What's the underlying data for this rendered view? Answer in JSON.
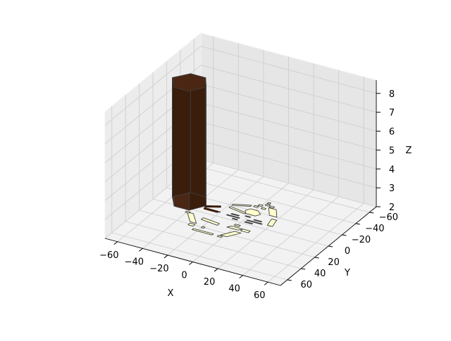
{
  "chart_data": {
    "type": "3d-polygons",
    "title": "",
    "xlabel": "X",
    "ylabel": "Y",
    "zlabel": "Z",
    "xlim": [
      -70,
      70
    ],
    "ylim": [
      -70,
      70
    ],
    "zlim": [
      2,
      8.7
    ],
    "x_ticks": [
      -60,
      -40,
      -20,
      0,
      20,
      40,
      60
    ],
    "y_ticks": [
      -60,
      -40,
      -20,
      0,
      20,
      40,
      60
    ],
    "z_ticks": [
      2,
      3,
      4,
      5,
      6,
      7,
      8
    ],
    "x_tick_labels": [
      "−60",
      "−40",
      "−20",
      "0",
      "20",
      "40",
      "60"
    ],
    "y_tick_labels": [
      "−60",
      "−40",
      "−20",
      "0",
      "20",
      "40",
      "60"
    ],
    "z_tick_labels": [
      "2",
      "3",
      "4",
      "5",
      "6",
      "7",
      "8"
    ],
    "grid": true,
    "colors": {
      "tower_top": "#4a2613",
      "tower_face_light": "#4a2614",
      "tower_face_dark": "#3b1d0c",
      "flat_light": "#ffffcc",
      "flat_dark": "#3a2a25",
      "edge": "#404040"
    },
    "tower": {
      "z_base": 2.0,
      "z_top": 8.3,
      "footprint": [
        [
          -60,
          -10
        ],
        [
          -52,
          -22
        ],
        [
          -40,
          -22
        ],
        [
          -33,
          -10
        ],
        [
          -40,
          2
        ],
        [
          -52,
          2
        ]
      ]
    },
    "flat_polygons": [
      {
        "tone": "light",
        "pts": [
          [
            -24,
            27
          ],
          [
            -8,
            27
          ],
          [
            -8,
            25
          ],
          [
            -24,
            25
          ]
        ]
      },
      {
        "tone": "light",
        "pts": [
          [
            -4,
            27
          ],
          [
            -1,
            27
          ],
          [
            -1,
            25
          ],
          [
            -4,
            25
          ]
        ]
      },
      {
        "tone": "light",
        "pts": [
          [
            -30,
            22
          ],
          [
            -26,
            22
          ],
          [
            -26,
            19
          ],
          [
            -30,
            19
          ]
        ]
      },
      {
        "tone": "light",
        "pts": [
          [
            -20,
            21
          ],
          [
            -18,
            21
          ],
          [
            -18,
            19
          ],
          [
            -20,
            19
          ]
        ]
      },
      {
        "tone": "light",
        "pts": [
          [
            -3,
            24
          ],
          [
            2,
            24
          ],
          [
            8,
            14
          ],
          [
            3,
            14
          ]
        ]
      },
      {
        "tone": "light",
        "pts": [
          [
            -31,
            17
          ],
          [
            -26,
            17
          ],
          [
            -35,
            5
          ],
          [
            -40,
            5
          ]
        ]
      },
      {
        "tone": "light",
        "pts": [
          [
            -26,
            10
          ],
          [
            -12,
            12
          ],
          [
            -12,
            9
          ],
          [
            -26,
            7
          ]
        ]
      },
      {
        "tone": "light",
        "pts": [
          [
            -5,
            11
          ],
          [
            4,
            11
          ],
          [
            6,
            8
          ],
          [
            -3,
            8
          ]
        ]
      },
      {
        "tone": "light",
        "pts": [
          [
            6,
            11
          ],
          [
            12,
            11
          ],
          [
            12,
            8
          ],
          [
            6,
            8
          ]
        ]
      },
      {
        "tone": "light",
        "pts": [
          [
            -2,
            6
          ],
          [
            2,
            6
          ],
          [
            2,
            4
          ],
          [
            -2,
            4
          ]
        ]
      },
      {
        "tone": "light",
        "pts": [
          [
            -41,
            6
          ],
          [
            -38,
            6
          ],
          [
            -38,
            4
          ],
          [
            -41,
            4
          ]
        ]
      },
      {
        "tone": "dark",
        "pts": [
          [
            -8,
            -2
          ],
          [
            -4,
            -2
          ],
          [
            -4,
            -3
          ],
          [
            -8,
            -3
          ]
        ]
      },
      {
        "tone": "dark",
        "pts": [
          [
            2,
            -2
          ],
          [
            8,
            -2
          ],
          [
            8,
            -3
          ],
          [
            2,
            -3
          ]
        ]
      },
      {
        "tone": "dark",
        "pts": [
          [
            -14,
            -5
          ],
          [
            -4,
            -5
          ],
          [
            -4,
            -6
          ],
          [
            -14,
            -6
          ]
        ]
      },
      {
        "tone": "dark",
        "pts": [
          [
            2,
            -5
          ],
          [
            14,
            -5
          ],
          [
            14,
            -6
          ],
          [
            2,
            -6
          ]
        ]
      },
      {
        "tone": "dark",
        "pts": [
          [
            -12,
            -8
          ],
          [
            -6,
            -8
          ],
          [
            -6,
            -9
          ],
          [
            -12,
            -9
          ]
        ]
      },
      {
        "tone": "dark",
        "pts": [
          [
            6,
            -8
          ],
          [
            12,
            -8
          ],
          [
            12,
            -9
          ],
          [
            6,
            -9
          ]
        ]
      },
      {
        "tone": "dark",
        "pts": [
          [
            -2,
            -10
          ],
          [
            2,
            -10
          ],
          [
            2,
            -11
          ],
          [
            -2,
            -11
          ]
        ]
      },
      {
        "tone": "dark",
        "pts": [
          [
            -32,
            -6
          ],
          [
            -20,
            -6
          ],
          [
            -20,
            -7
          ],
          [
            -32,
            -7
          ]
        ]
      },
      {
        "tone": "dark",
        "pts": [
          [
            -34,
            -9
          ],
          [
            -24,
            -13
          ],
          [
            -24,
            -14
          ],
          [
            -34,
            -10
          ]
        ]
      },
      {
        "tone": "light",
        "pts": [
          [
            -4,
            -14
          ],
          [
            4,
            -14
          ],
          [
            6,
            -18
          ],
          [
            2,
            -22
          ],
          [
            -4,
            -22
          ],
          [
            -6,
            -18
          ]
        ]
      },
      {
        "tone": "light",
        "pts": [
          [
            18,
            -6
          ],
          [
            22,
            -6
          ],
          [
            20,
            -16
          ],
          [
            16,
            -16
          ]
        ]
      },
      {
        "tone": "light",
        "pts": [
          [
            -18,
            -16
          ],
          [
            -4,
            -13
          ],
          [
            -4,
            -15
          ],
          [
            -18,
            -18
          ]
        ]
      },
      {
        "tone": "light",
        "pts": [
          [
            -18,
            -20
          ],
          [
            -6,
            -25
          ],
          [
            -6,
            -27
          ],
          [
            -18,
            -22
          ]
        ]
      },
      {
        "tone": "light",
        "pts": [
          [
            -4,
            -26
          ],
          [
            -1,
            -26
          ],
          [
            -1,
            -28
          ],
          [
            -4,
            -28
          ]
        ]
      },
      {
        "tone": "light",
        "pts": [
          [
            2,
            -26
          ],
          [
            5,
            -26
          ],
          [
            5,
            -28
          ],
          [
            2,
            -28
          ]
        ]
      },
      {
        "tone": "light",
        "pts": [
          [
            -2,
            -29
          ],
          [
            1,
            -29
          ],
          [
            1,
            -31
          ],
          [
            -2,
            -31
          ]
        ]
      },
      {
        "tone": "light",
        "pts": [
          [
            12,
            -20
          ],
          [
            18,
            -20
          ],
          [
            12,
            -30
          ],
          [
            6,
            -30
          ]
        ]
      },
      {
        "tone": "light",
        "pts": [
          [
            6,
            -31
          ],
          [
            9,
            -31
          ],
          [
            9,
            -33
          ],
          [
            6,
            -33
          ]
        ]
      },
      {
        "tone": "light",
        "pts": [
          [
            2,
            -32
          ],
          [
            5,
            -32
          ],
          [
            5,
            -34
          ],
          [
            2,
            -34
          ]
        ]
      },
      {
        "tone": "light",
        "pts": [
          [
            2,
            -35
          ],
          [
            4,
            -35
          ],
          [
            4,
            -37
          ],
          [
            2,
            -37
          ]
        ]
      }
    ],
    "stub_lines": [
      {
        "pts": [
          [
            -32,
            -6
          ],
          [
            -22,
            -6
          ]
        ],
        "width": 3
      },
      {
        "pts": [
          [
            -33,
            -9
          ],
          [
            -24,
            -14
          ]
        ],
        "width": 3
      }
    ],
    "view": {
      "elev": 20,
      "azim": -60
    }
  }
}
